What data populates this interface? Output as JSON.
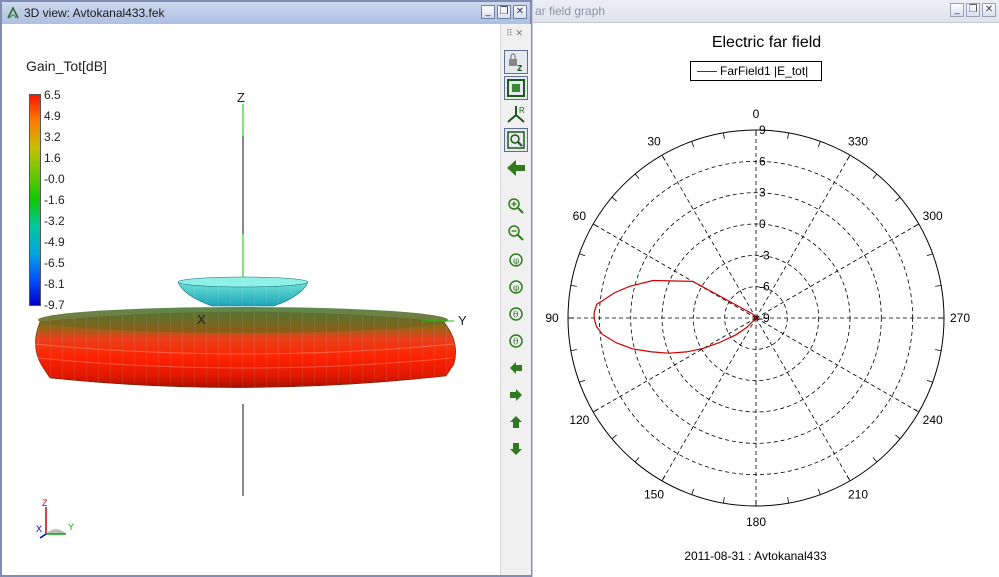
{
  "left_window": {
    "title": "3D view: Avtokanal433.fek",
    "legend_title": "Gain_Tot[dB]",
    "colorbar_labels": [
      "6.5",
      "4.9",
      "3.2",
      "1.6",
      "-0.0",
      "-1.6",
      "-3.2",
      "-4.9",
      "-6.5",
      "-8.1",
      "-9.7"
    ],
    "axes": {
      "z": "Z",
      "x": "X",
      "y": "Y"
    },
    "triad": {
      "z": "Z",
      "x": "X",
      "y": "Y"
    },
    "toolbar_icons": [
      "lock-z-icon",
      "zoom-extents-icon",
      "axes-r-icon",
      "zoom-window-icon",
      "back-arrow-icon",
      "zoom-in-icon",
      "zoom-out-icon",
      "rotate-phi-plus-icon",
      "rotate-phi-minus-icon",
      "rotate-theta-plus-icon",
      "rotate-theta-minus-icon",
      "pan-left-icon",
      "pan-right-icon",
      "pan-up-icon",
      "pan-down-icon"
    ]
  },
  "right_window": {
    "title": "ar field graph",
    "plot_title": "Electric far field",
    "legend_entry": "FarField1 |E_tot|",
    "footer": "2011-08-31 : Avtokanal433",
    "chart_data": {
      "type": "polar",
      "title": "Electric far field",
      "angle_labels": [
        "0",
        "30",
        "60",
        "90",
        "120",
        "150",
        "180",
        "210",
        "240",
        "270",
        "300",
        "330"
      ],
      "radial_labels": [
        "9",
        "6",
        "3",
        "0",
        "-3",
        "-6",
        "-9"
      ],
      "rlim": [
        -9,
        9
      ],
      "grid": true,
      "legend_position": "top-center",
      "series": [
        {
          "name": "FarField1 |E_tot|",
          "color": "#cc0000",
          "angle": [
            85,
            88,
            90,
            93,
            96,
            100,
            104,
            108,
            112,
            116,
            120,
            124,
            130,
            136,
            180,
            236,
            242,
            250,
            256,
            262,
            268,
            272,
            276,
            280,
            284,
            290,
            300,
            320,
            350,
            20,
            40,
            60,
            70,
            76,
            80,
            83
          ],
          "r": [
            6.3,
            6.5,
            6.5,
            6.3,
            5.8,
            4.6,
            3.2,
            1.5,
            0.0,
            -1.6,
            -3.2,
            -4.8,
            -6.5,
            -7.8,
            -9.0,
            -8.8,
            -8.8,
            -9.0,
            -9.0,
            -9.0,
            -9.0,
            -9.0,
            -9.0,
            -9.0,
            -9.0,
            -9.0,
            -9.0,
            -9.0,
            -9.0,
            -9.0,
            -8.5,
            -2.0,
            1.5,
            3.5,
            4.8,
            5.6
          ]
        }
      ]
    }
  },
  "colors": {
    "trace": "#cc0000",
    "title_bar_active": "#aebfe3"
  }
}
